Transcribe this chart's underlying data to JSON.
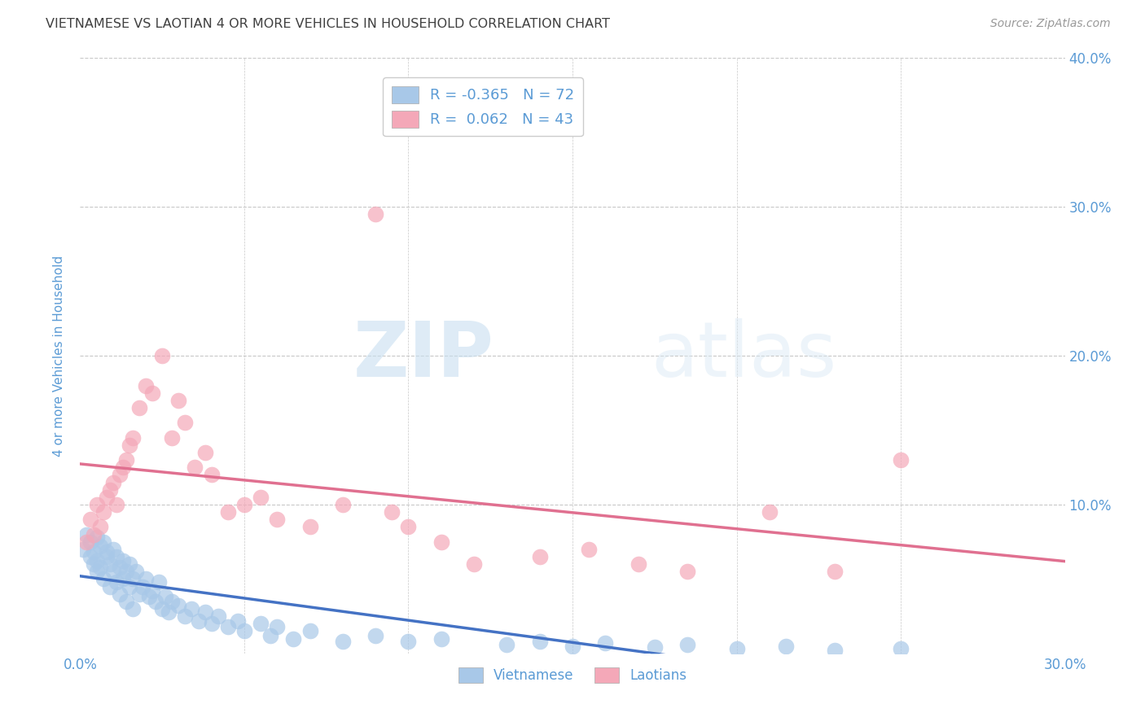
{
  "title": "VIETNAMESE VS LAOTIAN 4 OR MORE VEHICLES IN HOUSEHOLD CORRELATION CHART",
  "source": "Source: ZipAtlas.com",
  "ylabel": "4 or more Vehicles in Household",
  "xlim": [
    0.0,
    0.3
  ],
  "ylim": [
    0.0,
    0.4
  ],
  "xticks": [
    0.0,
    0.05,
    0.1,
    0.15,
    0.2,
    0.25,
    0.3
  ],
  "yticks": [
    0.0,
    0.1,
    0.2,
    0.3,
    0.4
  ],
  "background_color": "#ffffff",
  "grid_color": "#c8c8c8",
  "watermark_zip": "ZIP",
  "watermark_atlas": "atlas",
  "blue_color": "#a8c8e8",
  "pink_color": "#f4a8b8",
  "blue_line_color": "#4472c4",
  "pink_line_color": "#e07090",
  "legend_R_blue": "-0.365",
  "legend_N_blue": "72",
  "legend_R_pink": "0.062",
  "legend_N_pink": "43",
  "legend_label_blue": "Vietnamese",
  "legend_label_pink": "Laotians",
  "title_color": "#404040",
  "axis_color": "#5b9bd5",
  "blue_scatter_x": [
    0.001,
    0.002,
    0.003,
    0.003,
    0.004,
    0.004,
    0.005,
    0.005,
    0.005,
    0.006,
    0.006,
    0.007,
    0.007,
    0.008,
    0.008,
    0.009,
    0.009,
    0.01,
    0.01,
    0.011,
    0.011,
    0.012,
    0.012,
    0.013,
    0.013,
    0.014,
    0.014,
    0.015,
    0.015,
    0.016,
    0.016,
    0.017,
    0.018,
    0.019,
    0.02,
    0.021,
    0.022,
    0.023,
    0.024,
    0.025,
    0.026,
    0.027,
    0.028,
    0.03,
    0.032,
    0.034,
    0.036,
    0.038,
    0.04,
    0.042,
    0.045,
    0.048,
    0.05,
    0.055,
    0.058,
    0.06,
    0.065,
    0.07,
    0.08,
    0.09,
    0.1,
    0.11,
    0.13,
    0.14,
    0.15,
    0.16,
    0.175,
    0.185,
    0.2,
    0.215,
    0.23,
    0.25
  ],
  "blue_scatter_y": [
    0.07,
    0.08,
    0.065,
    0.075,
    0.068,
    0.06,
    0.078,
    0.055,
    0.062,
    0.072,
    0.058,
    0.075,
    0.05,
    0.065,
    0.068,
    0.06,
    0.045,
    0.07,
    0.055,
    0.065,
    0.048,
    0.058,
    0.04,
    0.062,
    0.05,
    0.055,
    0.035,
    0.06,
    0.045,
    0.05,
    0.03,
    0.055,
    0.04,
    0.045,
    0.05,
    0.038,
    0.042,
    0.035,
    0.048,
    0.03,
    0.038,
    0.028,
    0.035,
    0.032,
    0.025,
    0.03,
    0.022,
    0.028,
    0.02,
    0.025,
    0.018,
    0.022,
    0.015,
    0.02,
    0.012,
    0.018,
    0.01,
    0.015,
    0.008,
    0.012,
    0.008,
    0.01,
    0.006,
    0.008,
    0.005,
    0.007,
    0.004,
    0.006,
    0.003,
    0.005,
    0.002,
    0.003
  ],
  "pink_scatter_x": [
    0.002,
    0.003,
    0.004,
    0.005,
    0.006,
    0.007,
    0.008,
    0.009,
    0.01,
    0.011,
    0.012,
    0.013,
    0.014,
    0.015,
    0.016,
    0.018,
    0.02,
    0.022,
    0.025,
    0.028,
    0.03,
    0.032,
    0.035,
    0.038,
    0.04,
    0.045,
    0.05,
    0.055,
    0.06,
    0.07,
    0.08,
    0.09,
    0.095,
    0.1,
    0.11,
    0.12,
    0.14,
    0.155,
    0.17,
    0.185,
    0.21,
    0.23,
    0.25
  ],
  "pink_scatter_y": [
    0.075,
    0.09,
    0.08,
    0.1,
    0.085,
    0.095,
    0.105,
    0.11,
    0.115,
    0.1,
    0.12,
    0.125,
    0.13,
    0.14,
    0.145,
    0.165,
    0.18,
    0.175,
    0.2,
    0.145,
    0.17,
    0.155,
    0.125,
    0.135,
    0.12,
    0.095,
    0.1,
    0.105,
    0.09,
    0.085,
    0.1,
    0.295,
    0.095,
    0.085,
    0.075,
    0.06,
    0.065,
    0.07,
    0.06,
    0.055,
    0.095,
    0.055,
    0.13
  ]
}
